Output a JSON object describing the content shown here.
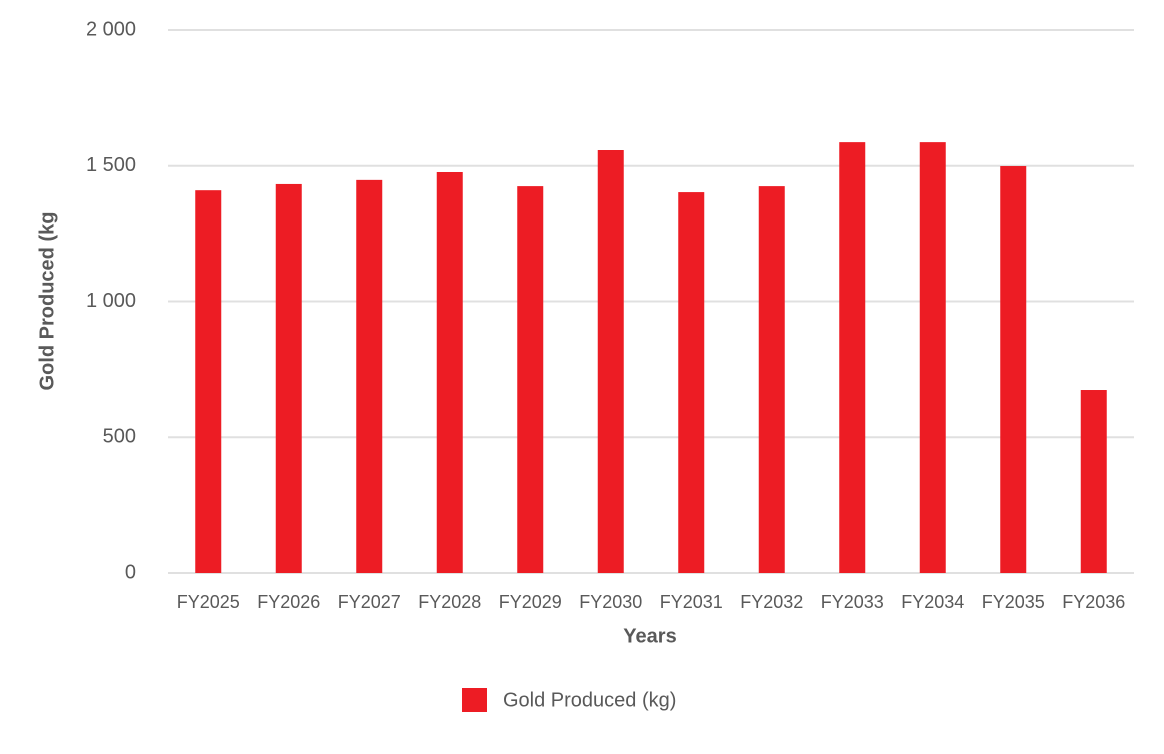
{
  "chart_data": {
    "type": "bar",
    "x_label": "Years",
    "y_label": "Gold Produced (kg",
    "categories": [
      "FY2025",
      "FY2026",
      "FY2027",
      "FY2028",
      "FY2029",
      "FY2030",
      "FY2031",
      "FY2032",
      "FY2033",
      "FY2034",
      "FY2035",
      "FY2036"
    ],
    "series": [
      {
        "name": "Gold Produced (kg)",
        "color": "#ed1c24",
        "values": [
          1410,
          1433,
          1448,
          1477,
          1425,
          1558,
          1403,
          1425,
          1587,
          1587,
          1499,
          674
        ]
      }
    ],
    "ylim": [
      0,
      2000
    ],
    "yticks": [
      0,
      500,
      {
        "value": 1000,
        "label": "1 000"
      },
      {
        "value": 1500,
        "label": "1 500"
      },
      {
        "value": 2000,
        "label": "2 000"
      }
    ],
    "grid": true,
    "legend": "bottom"
  }
}
